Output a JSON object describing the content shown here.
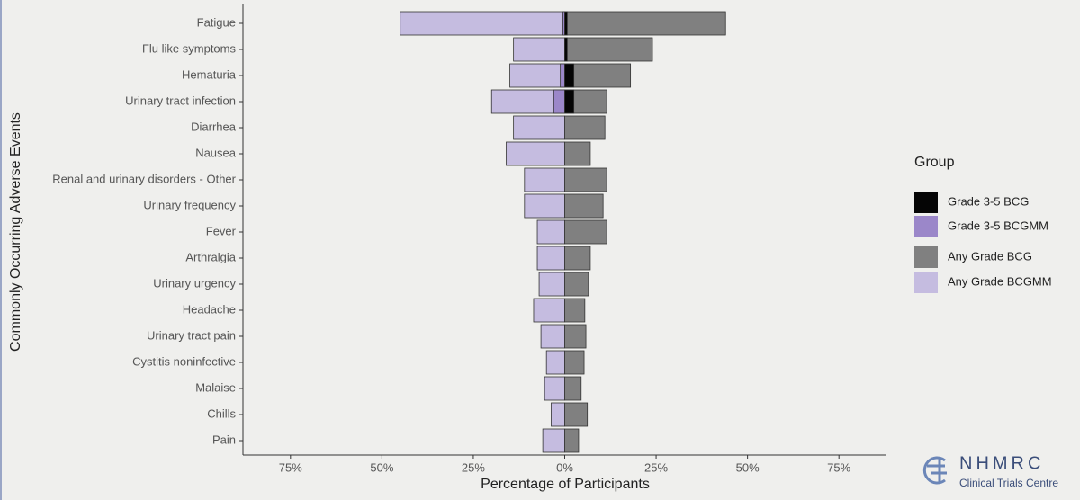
{
  "chart_data": {
    "type": "bar",
    "orientation": "horizontal",
    "stacking": "overlay",
    "x_label": "Percentage of Participants",
    "y_label": "Commonly Occurring Adverse Events",
    "legend_title": "Group",
    "legend_position": "right",
    "categories": [
      "Fatigue",
      "Flu like symptoms",
      "Hematuria",
      "Urinary tract infection",
      "Diarrhea",
      "Nausea",
      "Renal and urinary disorders - Other",
      "Urinary frequency",
      "Fever",
      "Arthralgia",
      "Urinary urgency",
      "Headache",
      "Urinary tract pain",
      "Cystitis noninfective",
      "Malaise",
      "Chills",
      "Pain"
    ],
    "series": [
      {
        "name": "Grade 3-5 BCG",
        "color": "#050505",
        "values": [
          0.7,
          0.7,
          2.5,
          2.5,
          0,
          0,
          0,
          0,
          0,
          0,
          0,
          0,
          0,
          0,
          0,
          0,
          0
        ]
      },
      {
        "name": "Grade 3-5 BCGMM",
        "color": "#9b87c9",
        "values": [
          -0.5,
          0,
          -1.2,
          -3,
          0,
          0,
          0,
          0,
          0,
          0,
          0,
          0,
          0,
          0,
          0,
          0,
          0
        ]
      },
      {
        "name": "Any Grade BCG",
        "color": "#808080",
        "values": [
          44,
          24,
          18,
          11.5,
          11,
          7,
          11.5,
          10.5,
          11.5,
          7,
          6.5,
          5.5,
          5.8,
          5.3,
          4.5,
          6.2,
          3.8
        ]
      },
      {
        "name": "Any Grade BCGMM",
        "color": "#c5bce0",
        "values": [
          -45,
          -14,
          -15,
          -20,
          -14,
          -16,
          -11,
          -11,
          -7.5,
          -7.5,
          -7,
          -8.5,
          -6.5,
          -5,
          -5.5,
          -3.7,
          -6
        ]
      }
    ],
    "xlim": [
      -88,
      88
    ],
    "xticks": [
      {
        "value": -75,
        "label": "75%"
      },
      {
        "value": -50,
        "label": "50%"
      },
      {
        "value": -25,
        "label": "25%"
      },
      {
        "value": 0,
        "label": "0%"
      },
      {
        "value": 25,
        "label": "25%"
      },
      {
        "value": 50,
        "label": "50%"
      },
      {
        "value": 75,
        "label": "75%"
      }
    ],
    "grid": false
  },
  "logo": {
    "name": "NHMRC",
    "subtitle": "Clinical Trials Centre"
  }
}
